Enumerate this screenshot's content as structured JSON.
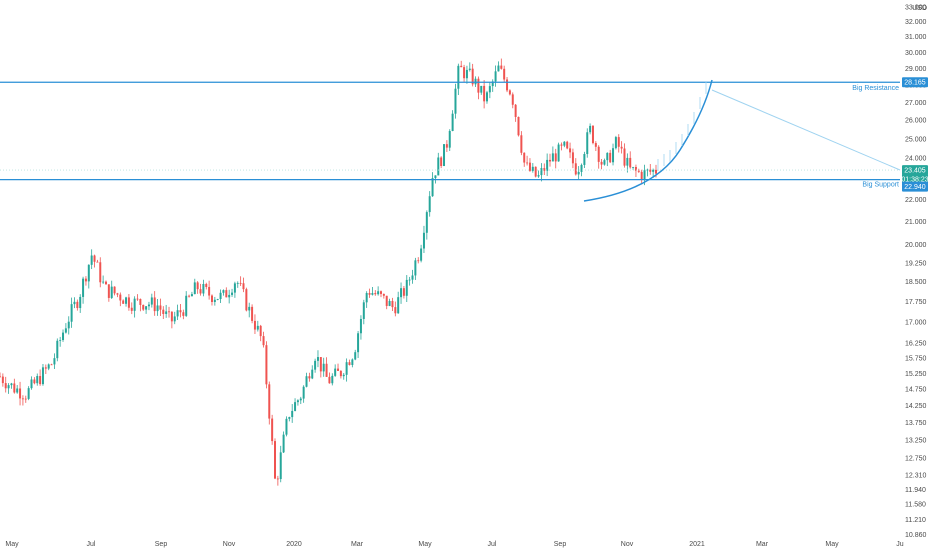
{
  "chart_data": {
    "type": "candlestick",
    "y_unit": "USD",
    "y_scale": "log",
    "ylim": [
      10600,
      33600
    ],
    "y_ticks": [
      "10.860",
      "11.210",
      "11.580",
      "11.940",
      "12.310",
      "12.750",
      "13.250",
      "13.750",
      "14.250",
      "14.750",
      "15.250",
      "15.750",
      "16.250",
      "17.000",
      "17.750",
      "18.500",
      "19.250",
      "20.000",
      "21.000",
      "22.000",
      "23.000",
      "24.000",
      "25.000",
      "26.000",
      "27.000",
      "28.000",
      "29.000",
      "30.000",
      "31.000",
      "32.000",
      "33.000"
    ],
    "x_ticks": [
      "May",
      "Jul",
      "Sep",
      "Nov",
      "2020",
      "Mar",
      "May",
      "Jul",
      "Sep",
      "Nov",
      "2021",
      "Mar",
      "May",
      "Ju"
    ],
    "price_path": [
      [
        "May",
        15150
      ],
      [
        "Jun",
        14800
      ],
      [
        "Jun",
        14600
      ],
      [
        "Jul",
        15100
      ],
      [
        "Jul",
        15600
      ],
      [
        "Aug",
        16900
      ],
      [
        "Aug",
        17900
      ],
      [
        "Sep",
        19600
      ],
      [
        "Sep",
        18200
      ],
      [
        "Oct",
        18000
      ],
      [
        "Oct",
        17700
      ],
      [
        "Nov",
        17700
      ],
      [
        "Nov",
        17600
      ],
      [
        "Dec",
        17000
      ],
      [
        "Dec",
        17500
      ],
      [
        "Jan",
        18300
      ],
      [
        "Jan",
        18000
      ],
      [
        "Feb",
        17900
      ],
      [
        "Feb",
        18600
      ],
      [
        "Feb",
        17400
      ],
      [
        "Mar",
        16300
      ],
      [
        "Mar",
        12000
      ],
      [
        "Mar",
        14000
      ],
      [
        "Apr",
        14600
      ],
      [
        "Apr",
        15900
      ],
      [
        "Apr",
        15000
      ],
      [
        "May",
        15300
      ],
      [
        "May",
        16000
      ],
      [
        "Jun",
        18200
      ],
      [
        "Jun",
        17900
      ],
      [
        "Jun",
        17500
      ],
      [
        "Jul",
        18300
      ],
      [
        "Jul",
        19800
      ],
      [
        "Jul",
        23200
      ],
      [
        "Aug",
        24500
      ],
      [
        "Aug",
        29000
      ],
      [
        "Aug",
        28400
      ],
      [
        "Aug",
        27100
      ],
      [
        "Sep",
        29000
      ],
      [
        "Sep",
        27500
      ],
      [
        "Sep",
        23600
      ],
      [
        "Sep",
        23000
      ],
      [
        "Oct",
        24000
      ],
      [
        "Oct",
        24500
      ],
      [
        "Oct",
        23400
      ],
      [
        "Nov",
        25500
      ],
      [
        "Nov",
        23500
      ],
      [
        "Nov",
        24800
      ],
      [
        "Nov",
        23400
      ],
      [
        "Dec",
        23200
      ],
      [
        "Dec",
        23405
      ]
    ],
    "levels": [
      {
        "name": "Big Resistance",
        "value_text": "28.165"
      },
      {
        "name": "Big Support",
        "value_text": "22.940"
      }
    ],
    "price_tags": {
      "last": "23.405",
      "timer": "01:38:23"
    },
    "colors": {
      "up": "#26a69a",
      "down": "#ef5350",
      "level": "#2a8fd6",
      "projection": "#9fd3f0",
      "last_tag": "#26a69a"
    }
  }
}
